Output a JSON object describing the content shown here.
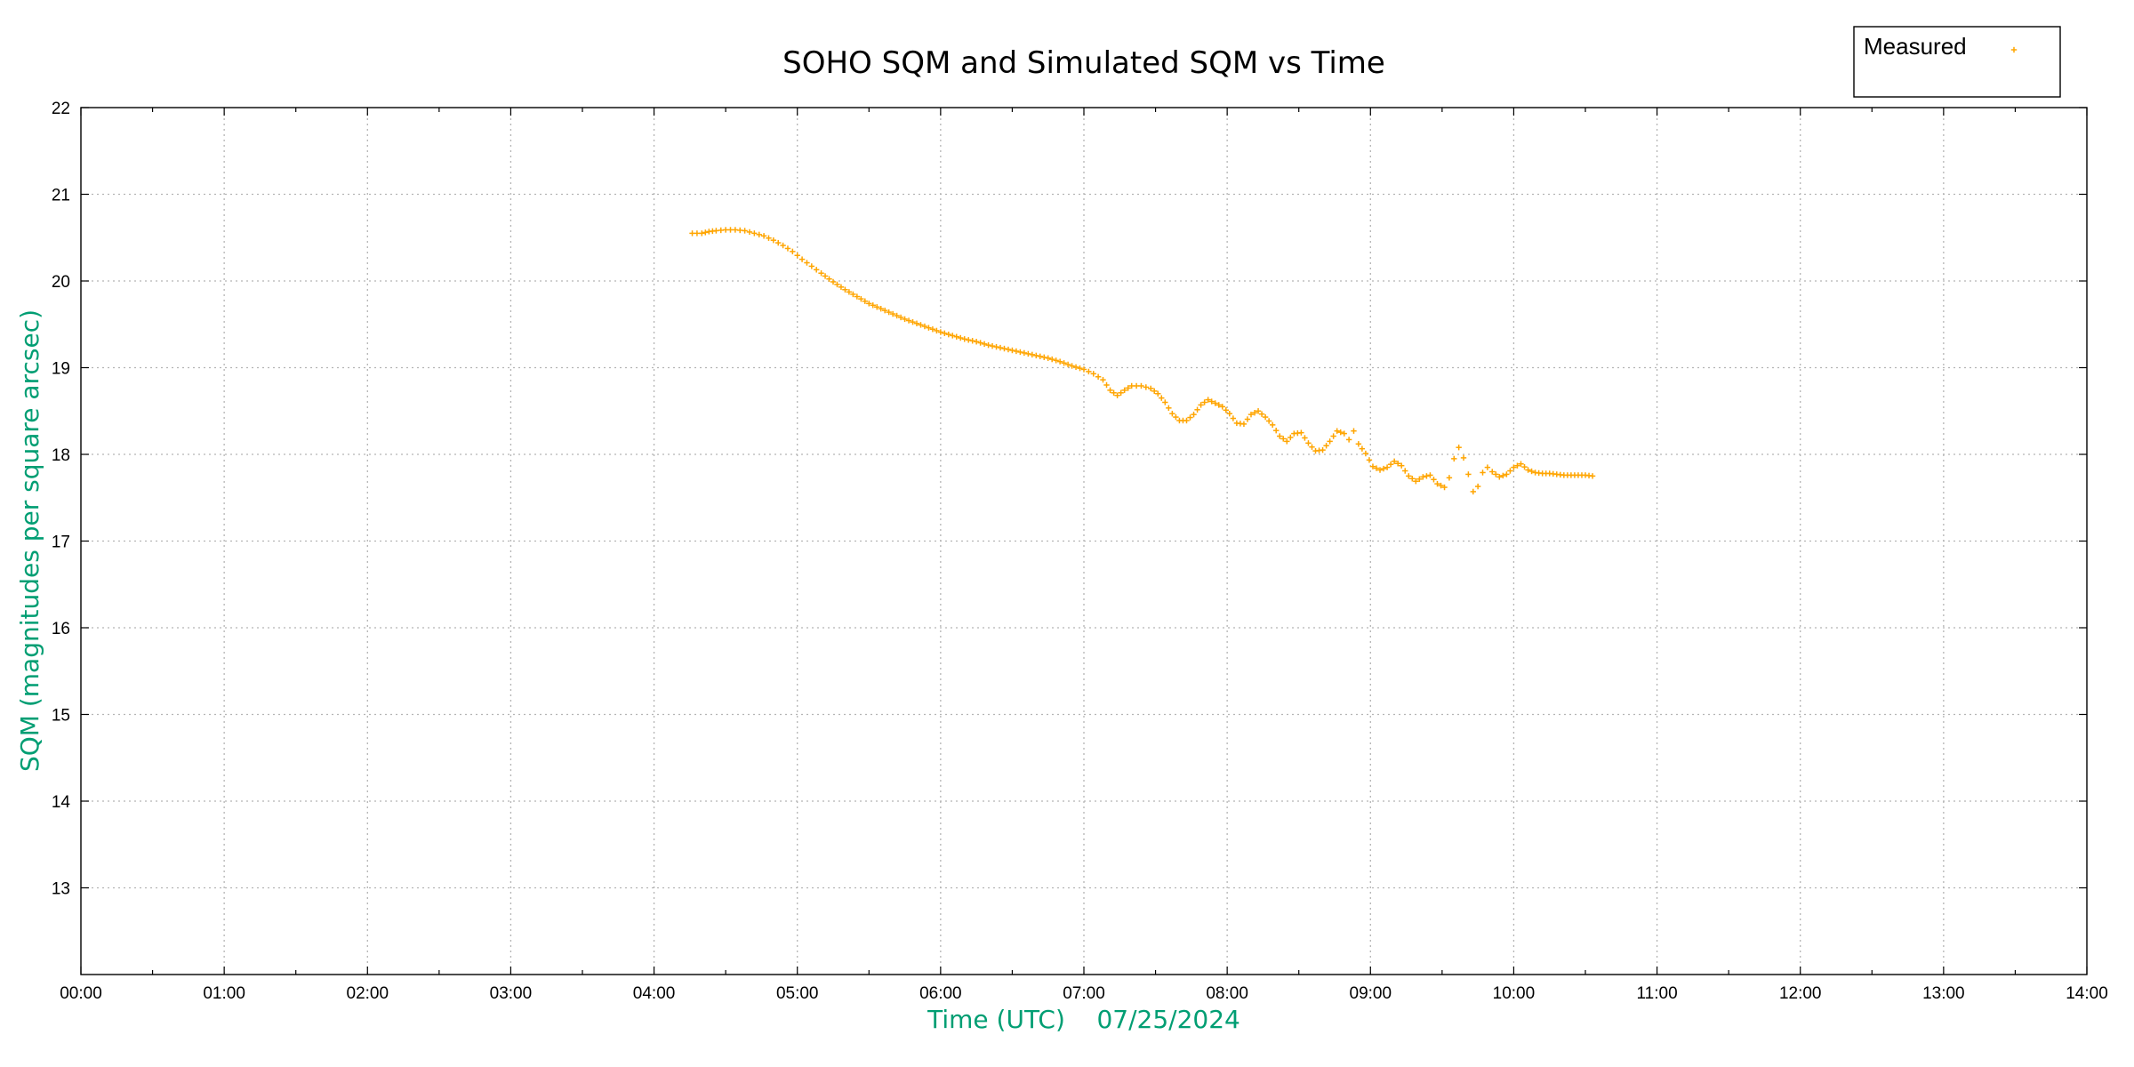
{
  "chart_data": {
    "type": "scatter",
    "title": "SOHO SQM and Simulated SQM vs Time",
    "xlabel": "Time (UTC)    07/25/2024",
    "ylabel": "SQM (magnitudes per square arcsec)",
    "xlim_hours": [
      0,
      14
    ],
    "ylim": [
      12,
      22
    ],
    "x_ticks": [
      "00:00",
      "01:00",
      "02:00",
      "03:00",
      "04:00",
      "05:00",
      "06:00",
      "07:00",
      "08:00",
      "09:00",
      "10:00",
      "11:00",
      "12:00",
      "13:00",
      "14:00"
    ],
    "y_ticks": [
      "13",
      "14",
      "15",
      "16",
      "17",
      "18",
      "19",
      "20",
      "21",
      "22"
    ],
    "grid": true,
    "legend_position": "top-right",
    "series": [
      {
        "name": "Measured",
        "color": "#FFA500",
        "marker": "plus",
        "points": [
          [
            "04:16",
            20.55
          ],
          [
            "04:20",
            20.55
          ],
          [
            "04:23",
            20.57
          ],
          [
            "04:26",
            20.58
          ],
          [
            "04:30",
            20.59
          ],
          [
            "04:34",
            20.59
          ],
          [
            "04:38",
            20.58
          ],
          [
            "04:42",
            20.55
          ],
          [
            "04:46",
            20.52
          ],
          [
            "04:50",
            20.47
          ],
          [
            "04:54",
            20.41
          ],
          [
            "04:58",
            20.34
          ],
          [
            "05:02",
            20.25
          ],
          [
            "05:06",
            20.17
          ],
          [
            "05:10",
            20.09
          ],
          [
            "05:15",
            19.99
          ],
          [
            "05:20",
            19.9
          ],
          [
            "05:25",
            19.82
          ],
          [
            "05:30",
            19.74
          ],
          [
            "05:35",
            19.68
          ],
          [
            "05:40",
            19.62
          ],
          [
            "05:45",
            19.56
          ],
          [
            "05:50",
            19.51
          ],
          [
            "05:55",
            19.46
          ],
          [
            "06:00",
            19.41
          ],
          [
            "06:05",
            19.37
          ],
          [
            "06:10",
            19.33
          ],
          [
            "06:15",
            19.3
          ],
          [
            "06:20",
            19.26
          ],
          [
            "06:25",
            19.23
          ],
          [
            "06:30",
            19.2
          ],
          [
            "06:35",
            19.17
          ],
          [
            "06:40",
            19.14
          ],
          [
            "06:45",
            19.11
          ],
          [
            "06:50",
            19.07
          ],
          [
            "06:55",
            19.02
          ],
          [
            "07:00",
            18.98
          ],
          [
            "07:04",
            18.93
          ],
          [
            "07:08",
            18.86
          ],
          [
            "07:11",
            18.74
          ],
          [
            "07:14",
            18.68
          ],
          [
            "07:17",
            18.74
          ],
          [
            "07:20",
            18.79
          ],
          [
            "07:24",
            18.79
          ],
          [
            "07:28",
            18.76
          ],
          [
            "07:31",
            18.7
          ],
          [
            "07:34",
            18.6
          ],
          [
            "07:37",
            18.47
          ],
          [
            "07:40",
            18.39
          ],
          [
            "07:43",
            18.39
          ],
          [
            "07:46",
            18.46
          ],
          [
            "07:49",
            18.57
          ],
          [
            "07:52",
            18.63
          ],
          [
            "07:55",
            18.59
          ],
          [
            "07:58",
            18.55
          ],
          [
            "08:01",
            18.47
          ],
          [
            "08:04",
            18.36
          ],
          [
            "08:07",
            18.35
          ],
          [
            "08:10",
            18.46
          ],
          [
            "08:13",
            18.5
          ],
          [
            "08:16",
            18.43
          ],
          [
            "08:19",
            18.34
          ],
          [
            "08:22",
            18.21
          ],
          [
            "08:25",
            18.15
          ],
          [
            "08:28",
            18.24
          ],
          [
            "08:31",
            18.25
          ],
          [
            "08:34",
            18.13
          ],
          [
            "08:37",
            18.04
          ],
          [
            "08:40",
            18.05
          ],
          [
            "08:43",
            18.15
          ],
          [
            "08:46",
            18.27
          ],
          [
            "08:49",
            18.24
          ],
          [
            "08:51",
            18.17
          ],
          [
            "08:53",
            18.27
          ],
          [
            "08:55",
            18.12
          ],
          [
            "08:58",
            18.01
          ],
          [
            "09:01",
            17.86
          ],
          [
            "09:04",
            17.82
          ],
          [
            "09:07",
            17.85
          ],
          [
            "09:10",
            17.92
          ],
          [
            "09:13",
            17.87
          ],
          [
            "09:16",
            17.75
          ],
          [
            "09:19",
            17.69
          ],
          [
            "09:22",
            17.74
          ],
          [
            "09:25",
            17.76
          ],
          [
            "09:28",
            17.66
          ],
          [
            "09:31",
            17.62
          ],
          [
            "09:33",
            17.73
          ],
          [
            "09:35",
            17.95
          ],
          [
            "09:37",
            18.08
          ],
          [
            "09:39",
            17.96
          ],
          [
            "09:41",
            17.77
          ],
          [
            "09:43",
            17.57
          ],
          [
            "09:45",
            17.63
          ],
          [
            "09:47",
            17.79
          ],
          [
            "09:49",
            17.85
          ],
          [
            "09:51",
            17.8
          ],
          [
            "09:54",
            17.74
          ],
          [
            "09:57",
            17.77
          ],
          [
            "10:00",
            17.85
          ],
          [
            "10:03",
            17.89
          ],
          [
            "10:06",
            17.82
          ],
          [
            "10:09",
            17.79
          ],
          [
            "10:12",
            17.78
          ],
          [
            "10:15",
            17.78
          ],
          [
            "10:18",
            17.77
          ],
          [
            "10:21",
            17.76
          ],
          [
            "10:24",
            17.76
          ],
          [
            "10:27",
            17.76
          ],
          [
            "10:30",
            17.76
          ],
          [
            "10:33",
            17.75
          ]
        ]
      }
    ]
  },
  "colors": {
    "series": "#FFA500",
    "axis_label": "#009E73",
    "grid": "#B4B4B4"
  }
}
